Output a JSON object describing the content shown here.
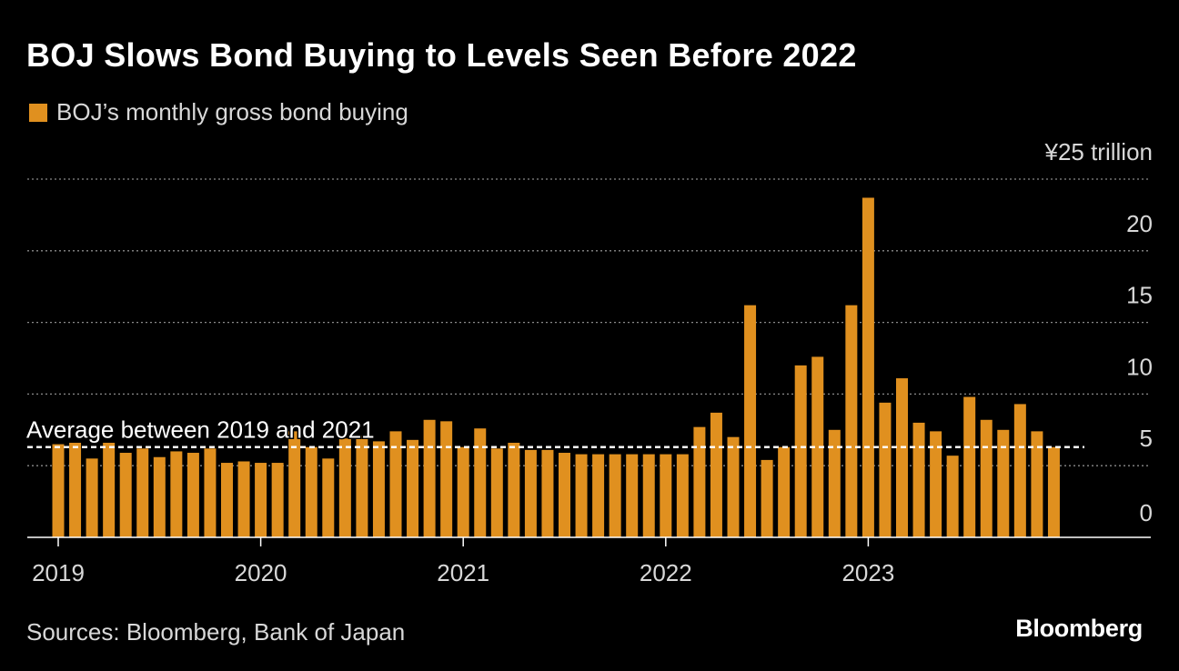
{
  "title": "BOJ Slows Bond Buying to Levels Seen Before 2022",
  "legend_label": "BOJ’s monthly gross bond buying",
  "source": "Sources: Bloomberg, Bank of Japan",
  "brand": "Bloomberg",
  "colors": {
    "bar": "#e0901f",
    "background": "#000000",
    "text": "#d8d8d8",
    "grid": "#8a8a8a"
  },
  "chart_data": {
    "type": "bar",
    "title": "BOJ Slows Bond Buying to Levels Seen Before 2022",
    "series_name": "BOJ’s monthly gross bond buying",
    "unit_label": "¥25 trillion",
    "ylim": [
      0,
      25
    ],
    "yticks": [
      {
        "value": 0,
        "label": "0"
      },
      {
        "value": 5,
        "label": "5"
      },
      {
        "value": 10,
        "label": "10"
      },
      {
        "value": 15,
        "label": "15"
      },
      {
        "value": 20,
        "label": "20"
      },
      {
        "value": 25,
        "label": "¥25 trillion"
      }
    ],
    "xticks": [
      {
        "index": 0,
        "label": "2019"
      },
      {
        "index": 12,
        "label": "2020"
      },
      {
        "index": 24,
        "label": "2021"
      },
      {
        "index": 36,
        "label": "2022"
      },
      {
        "index": 48,
        "label": "2023"
      }
    ],
    "categories": [
      "2019-01",
      "2019-02",
      "2019-03",
      "2019-04",
      "2019-05",
      "2019-06",
      "2019-07",
      "2019-08",
      "2019-09",
      "2019-10",
      "2019-11",
      "2019-12",
      "2020-01",
      "2020-02",
      "2020-03",
      "2020-04",
      "2020-05",
      "2020-06",
      "2020-07",
      "2020-08",
      "2020-09",
      "2020-10",
      "2020-11",
      "2020-12",
      "2021-01",
      "2021-02",
      "2021-03",
      "2021-04",
      "2021-05",
      "2021-06",
      "2021-07",
      "2021-08",
      "2021-09",
      "2021-10",
      "2021-11",
      "2021-12",
      "2022-01",
      "2022-02",
      "2022-03",
      "2022-04",
      "2022-05",
      "2022-06",
      "2022-07",
      "2022-08",
      "2022-09",
      "2022-10",
      "2022-11",
      "2022-12",
      "2023-01",
      "2023-02",
      "2023-03",
      "2023-04",
      "2023-05",
      "2023-06",
      "2023-07",
      "2023-08",
      "2023-09",
      "2023-10",
      "2023-11",
      "2023-12"
    ],
    "values": [
      6.5,
      6.6,
      5.5,
      6.6,
      5.9,
      6.2,
      5.6,
      6.0,
      5.9,
      6.2,
      5.2,
      5.3,
      5.2,
      5.2,
      7.4,
      6.3,
      5.5,
      6.9,
      7.1,
      6.7,
      7.4,
      6.8,
      8.2,
      8.1,
      6.3,
      7.6,
      6.2,
      6.6,
      6.1,
      6.1,
      5.9,
      5.8,
      5.8,
      5.8,
      5.8,
      5.8,
      5.8,
      5.8,
      7.7,
      8.7,
      7.0,
      16.2,
      5.4,
      6.3,
      12.0,
      12.6,
      7.5,
      16.2,
      23.7,
      9.4,
      11.1,
      8.0,
      7.4,
      5.7,
      9.8,
      8.2,
      7.5,
      9.3,
      7.4,
      6.3
    ],
    "reference_line": {
      "value": 6.3,
      "label": "Average between 2019 and 2021"
    },
    "grid": true
  }
}
